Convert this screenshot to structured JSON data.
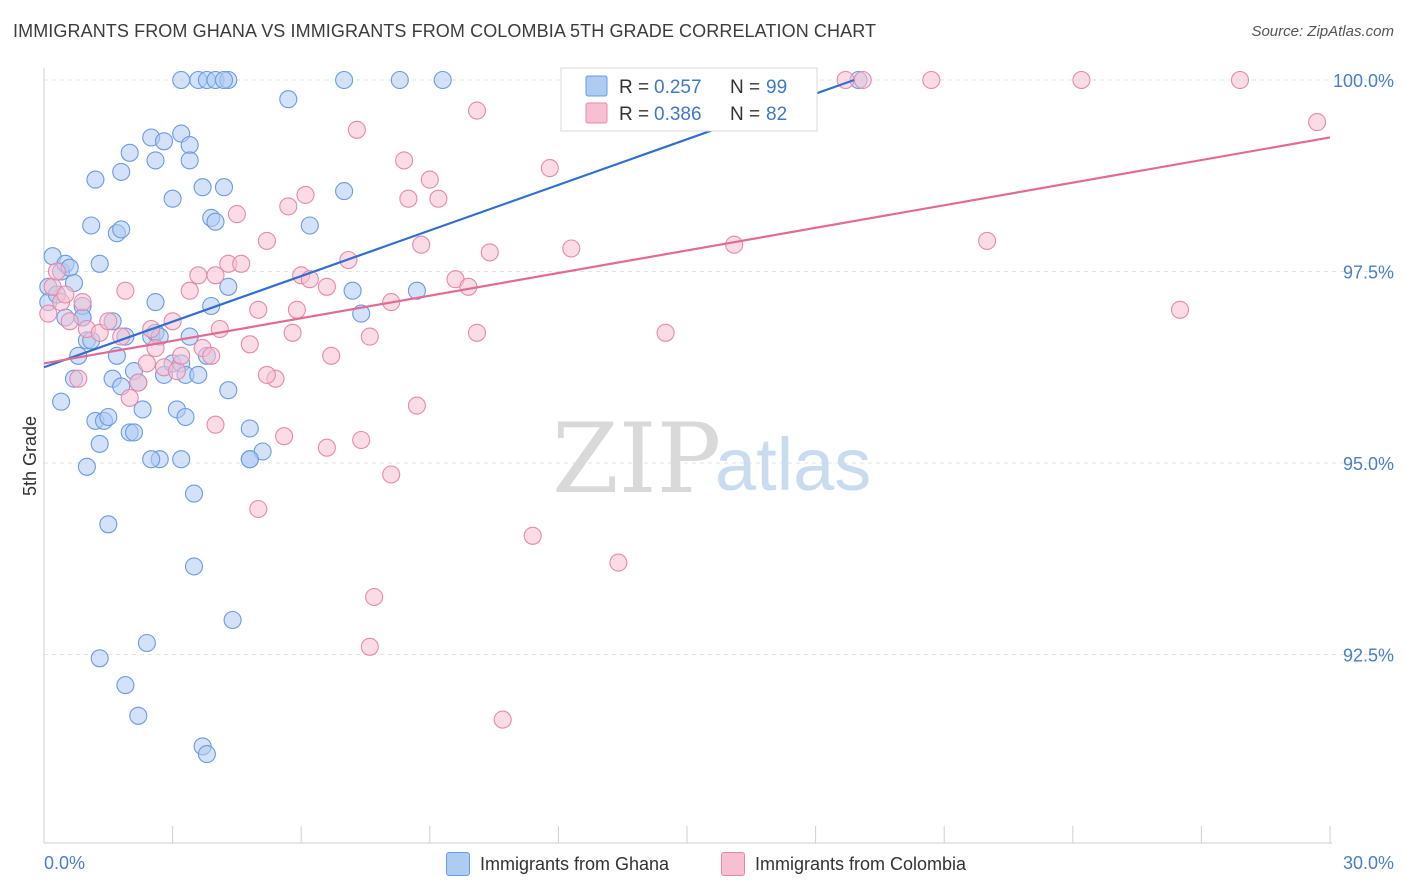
{
  "title": "IMMIGRANTS FROM GHANA VS IMMIGRANTS FROM COLOMBIA 5TH GRADE CORRELATION CHART",
  "source": "Source: ZipAtlas.com",
  "watermark": {
    "zip": "ZIP",
    "atlas": "atlas"
  },
  "colors": {
    "ghana_fill": "#aecbf2",
    "ghana_stroke": "#6b9be0",
    "ghana_line": "#2f6fd0",
    "colombia_fill": "#f7bfd1",
    "colombia_stroke": "#e68aa9",
    "colombia_line": "#e26b95",
    "tick_text": "#4a7ec9"
  },
  "legend": {
    "row1": {
      "r_label": "R = ",
      "r_value": "0.257",
      "n_label": "N = ",
      "n_value": "99"
    },
    "row2": {
      "r_label": "R = ",
      "r_value": "0.386",
      "n_label": "N = ",
      "n_value": "82"
    }
  },
  "bottom_legend": {
    "ghana": "Immigrants from Ghana",
    "colombia": "Immigrants from Colombia"
  },
  "chart_data": {
    "type": "scatter",
    "title": "IMMIGRANTS FROM GHANA VS IMMIGRANTS FROM COLOMBIA 5TH GRADE CORRELATION CHART",
    "xlabel": "",
    "ylabel": "5th Grade",
    "xlim": [
      0,
      30
    ],
    "ylim": [
      90.0,
      100.4
    ],
    "x_tick_labels": [
      "0.0%",
      "30.0%"
    ],
    "y_ticks": [
      92.5,
      95.0,
      97.5,
      100.0
    ],
    "y_tick_labels": [
      "92.5%",
      "95.0%",
      "97.5%",
      "100.0%"
    ],
    "grid": true,
    "legend_placement": "top-center",
    "series": [
      {
        "name": "Immigrants from Ghana",
        "r": 0.257,
        "n": 99,
        "trend": {
          "x": [
            0.0,
            18.9
          ],
          "y": [
            96.25,
            100.0
          ]
        },
        "points": [
          [
            0.1,
            97.3
          ],
          [
            0.1,
            97.1
          ],
          [
            0.2,
            97.7
          ],
          [
            0.3,
            97.2
          ],
          [
            0.4,
            97.5
          ],
          [
            0.5,
            97.6
          ],
          [
            0.5,
            96.9
          ],
          [
            0.6,
            97.55
          ],
          [
            0.7,
            97.35
          ],
          [
            0.8,
            96.4
          ],
          [
            0.7,
            96.1
          ],
          [
            0.9,
            96.9
          ],
          [
            0.9,
            97.05
          ],
          [
            1.0,
            96.6
          ],
          [
            0.4,
            95.8
          ],
          [
            1.1,
            96.6
          ],
          [
            1.2,
            95.55
          ],
          [
            1.3,
            95.25
          ],
          [
            1.4,
            95.55
          ],
          [
            1.5,
            95.6
          ],
          [
            1.6,
            96.1
          ],
          [
            1.7,
            96.4
          ],
          [
            1.8,
            96.0
          ],
          [
            1.9,
            96.65
          ],
          [
            1.0,
            94.95
          ],
          [
            1.5,
            94.2
          ],
          [
            2.0,
            95.4
          ],
          [
            2.1,
            96.2
          ],
          [
            2.2,
            96.05
          ],
          [
            2.3,
            95.7
          ],
          [
            2.5,
            96.65
          ],
          [
            2.6,
            96.7
          ],
          [
            2.7,
            95.05
          ],
          [
            2.8,
            96.15
          ],
          [
            3.0,
            96.3
          ],
          [
            3.1,
            95.7
          ],
          [
            3.2,
            96.3
          ],
          [
            3.3,
            96.15
          ],
          [
            3.4,
            96.65
          ],
          [
            3.5,
            94.6
          ],
          [
            2.5,
            99.25
          ],
          [
            2.6,
            98.95
          ],
          [
            2.8,
            99.2
          ],
          [
            3.0,
            98.45
          ],
          [
            3.2,
            99.3
          ],
          [
            3.4,
            99.15
          ],
          [
            3.4,
            98.95
          ],
          [
            3.7,
            98.6
          ],
          [
            3.9,
            98.2
          ],
          [
            4.0,
            98.15
          ],
          [
            4.2,
            98.6
          ],
          [
            1.1,
            98.1
          ],
          [
            1.7,
            98.0
          ],
          [
            1.8,
            98.05
          ],
          [
            1.2,
            98.7
          ],
          [
            1.8,
            98.8
          ],
          [
            2.0,
            99.05
          ],
          [
            3.2,
            100.0
          ],
          [
            3.6,
            100.0
          ],
          [
            3.8,
            100.0
          ],
          [
            4.0,
            100.0
          ],
          [
            4.3,
            100.0
          ],
          [
            4.2,
            100.0
          ],
          [
            5.7,
            99.75
          ],
          [
            7.0,
            100.0
          ],
          [
            8.3,
            100.0
          ],
          [
            9.3,
            100.0
          ],
          [
            6.2,
            98.1
          ],
          [
            7.0,
            98.55
          ],
          [
            7.2,
            97.25
          ],
          [
            7.4,
            96.95
          ],
          [
            8.7,
            97.25
          ],
          [
            1.3,
            97.6
          ],
          [
            2.6,
            97.1
          ],
          [
            3.9,
            97.05
          ],
          [
            4.3,
            97.3
          ],
          [
            3.6,
            96.15
          ],
          [
            4.3,
            95.95
          ],
          [
            4.8,
            95.05
          ],
          [
            4.8,
            95.45
          ],
          [
            5.1,
            95.15
          ],
          [
            3.2,
            95.05
          ],
          [
            2.5,
            95.05
          ],
          [
            3.5,
            93.65
          ],
          [
            4.4,
            92.95
          ],
          [
            2.4,
            92.65
          ],
          [
            1.3,
            92.45
          ],
          [
            1.9,
            92.1
          ],
          [
            2.2,
            91.7
          ],
          [
            3.7,
            91.3
          ],
          [
            3.8,
            91.2
          ],
          [
            4.8,
            95.05
          ],
          [
            3.3,
            95.6
          ],
          [
            2.1,
            95.4
          ],
          [
            1.6,
            96.85
          ],
          [
            0.9,
            96.9
          ],
          [
            2.7,
            96.65
          ],
          [
            3.8,
            96.4
          ],
          [
            19.0,
            100.0
          ]
        ]
      },
      {
        "name": "Immigrants from Colombia",
        "r": 0.386,
        "n": 82,
        "trend": {
          "x": [
            0.0,
            30.0
          ],
          "y": [
            96.3,
            99.25
          ]
        },
        "points": [
          [
            0.1,
            96.95
          ],
          [
            0.2,
            97.3
          ],
          [
            0.3,
            97.5
          ],
          [
            0.4,
            97.1
          ],
          [
            0.5,
            97.2
          ],
          [
            0.6,
            96.85
          ],
          [
            0.9,
            97.1
          ],
          [
            1.0,
            96.75
          ],
          [
            0.8,
            96.1
          ],
          [
            1.3,
            96.7
          ],
          [
            1.5,
            96.85
          ],
          [
            1.8,
            96.65
          ],
          [
            1.9,
            97.25
          ],
          [
            2.2,
            96.05
          ],
          [
            2.4,
            96.3
          ],
          [
            2.5,
            96.75
          ],
          [
            2.6,
            96.5
          ],
          [
            2.8,
            96.25
          ],
          [
            3.0,
            96.85
          ],
          [
            3.1,
            96.2
          ],
          [
            3.2,
            96.4
          ],
          [
            3.4,
            97.25
          ],
          [
            3.6,
            97.45
          ],
          [
            3.7,
            96.5
          ],
          [
            3.9,
            96.4
          ],
          [
            4.1,
            96.75
          ],
          [
            4.3,
            97.6
          ],
          [
            4.6,
            97.6
          ],
          [
            4.8,
            96.55
          ],
          [
            5.0,
            97.0
          ],
          [
            5.4,
            96.1
          ],
          [
            5.8,
            96.7
          ],
          [
            5.9,
            97.0
          ],
          [
            6.0,
            97.45
          ],
          [
            6.2,
            97.4
          ],
          [
            6.6,
            97.3
          ],
          [
            6.7,
            96.4
          ],
          [
            7.1,
            97.65
          ],
          [
            7.4,
            95.3
          ],
          [
            7.6,
            96.65
          ],
          [
            8.1,
            97.1
          ],
          [
            8.1,
            94.85
          ],
          [
            8.5,
            98.45
          ],
          [
            8.7,
            95.75
          ],
          [
            8.8,
            97.85
          ],
          [
            9.2,
            98.45
          ],
          [
            9.6,
            97.4
          ],
          [
            9.9,
            97.3
          ],
          [
            10.1,
            96.7
          ],
          [
            10.4,
            97.75
          ],
          [
            11.4,
            94.05
          ],
          [
            11.8,
            98.85
          ],
          [
            12.3,
            97.8
          ],
          [
            13.4,
            93.7
          ],
          [
            14.5,
            96.7
          ],
          [
            16.1,
            97.85
          ],
          [
            18.7,
            100.0
          ],
          [
            19.1,
            100.0
          ],
          [
            20.7,
            100.0
          ],
          [
            24.2,
            100.0
          ],
          [
            27.9,
            100.0
          ],
          [
            29.7,
            99.45
          ],
          [
            22.0,
            97.9
          ],
          [
            26.5,
            97.0
          ],
          [
            7.3,
            99.35
          ],
          [
            10.1,
            99.6
          ],
          [
            8.4,
            98.95
          ],
          [
            9.0,
            98.7
          ],
          [
            6.1,
            98.5
          ],
          [
            5.7,
            98.35
          ],
          [
            4.5,
            98.25
          ],
          [
            5.2,
            97.9
          ],
          [
            4.0,
            97.45
          ],
          [
            2.0,
            95.85
          ],
          [
            4.0,
            95.5
          ],
          [
            5.0,
            94.4
          ],
          [
            5.6,
            95.35
          ],
          [
            6.6,
            95.2
          ],
          [
            7.7,
            93.25
          ],
          [
            7.6,
            92.6
          ],
          [
            10.7,
            91.65
          ],
          [
            5.2,
            96.15
          ]
        ]
      }
    ]
  }
}
